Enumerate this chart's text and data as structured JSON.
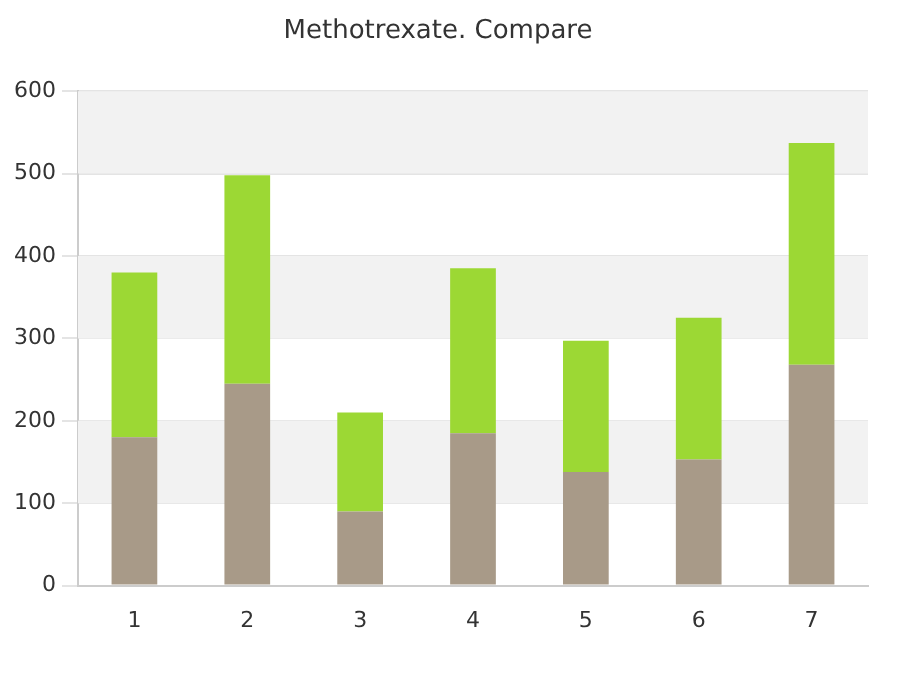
{
  "chart_data": {
    "type": "bar",
    "title": "Methotrexate. Compare",
    "categories": [
      "1",
      "2",
      "3",
      "4",
      "5",
      "6",
      "7"
    ],
    "stacked": true,
    "series": [
      {
        "color": "#a89a88",
        "values": [
          180,
          245,
          90,
          185,
          138,
          153,
          268
        ]
      },
      {
        "color": "#9cd834",
        "values": [
          200,
          253,
          120,
          200,
          159,
          172,
          269
        ]
      }
    ],
    "ylim": [
      0,
      600
    ],
    "yticks": [
      0,
      100,
      200,
      300,
      400,
      500,
      600
    ],
    "grid": "y"
  }
}
